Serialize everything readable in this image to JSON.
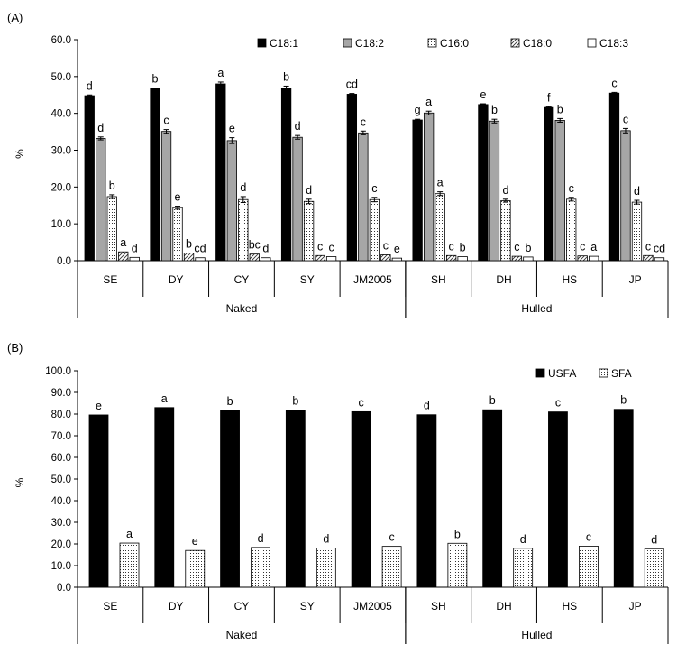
{
  "chart_data": [
    {
      "panel_label": "(A)",
      "type": "bar",
      "ylabel": "%",
      "ylim": [
        0,
        60
      ],
      "ytick_step": 10,
      "ytick_labels": [
        "0.0",
        "10.0",
        "20.0",
        "30.0",
        "40.0",
        "50.0",
        "60.0"
      ],
      "categories": [
        "SE",
        "DY",
        "CY",
        "SY",
        "JM2005",
        "SH",
        "DH",
        "HS",
        "JP"
      ],
      "groups": [
        {
          "label": "Naked",
          "count": 5
        },
        {
          "label": "Hulled",
          "count": 4
        }
      ],
      "legend_position": "top-right",
      "series": [
        {
          "name": "C18:1",
          "fill": "black",
          "values": [
            44.8,
            46.7,
            48.0,
            46.9,
            45.2,
            38.2,
            42.4,
            41.6,
            45.5
          ],
          "errors": [
            0.2,
            0.2,
            0.5,
            0.5,
            0.2,
            0.2,
            0.2,
            0.2,
            0.2
          ],
          "letters": [
            "d",
            "b",
            "a",
            "b",
            "cd",
            "g",
            "e",
            "f",
            "c"
          ]
        },
        {
          "name": "C18:2",
          "fill": "gray",
          "values": [
            33.2,
            35.1,
            32.6,
            33.5,
            34.7,
            40.1,
            37.9,
            38.1,
            35.3
          ],
          "errors": [
            0.4,
            0.5,
            0.8,
            0.5,
            0.5,
            0.5,
            0.5,
            0.5,
            0.6
          ],
          "letters": [
            "d",
            "c",
            "e",
            "d",
            "c",
            "a",
            "b",
            "b",
            "c"
          ]
        },
        {
          "name": "C16:0",
          "fill": "dots",
          "values": [
            17.4,
            14.4,
            16.6,
            16.1,
            16.6,
            18.2,
            16.3,
            16.7,
            15.9
          ],
          "errors": [
            0.5,
            0.4,
            0.8,
            0.6,
            0.6,
            0.5,
            0.4,
            0.5,
            0.5
          ],
          "letters": [
            "b",
            "e",
            "d",
            "d",
            "c",
            "a",
            "d",
            "c",
            "d"
          ]
        },
        {
          "name": "C18:0",
          "fill": "hatch",
          "values": [
            2.4,
            2.1,
            1.8,
            1.4,
            1.6,
            1.4,
            1.2,
            1.3,
            1.4
          ],
          "letters": [
            "a",
            "b",
            "bc",
            "c",
            "c",
            "c",
            "c",
            "c",
            "c"
          ]
        },
        {
          "name": "C18:3",
          "fill": "white",
          "values": [
            0.9,
            0.8,
            0.8,
            1.1,
            0.7,
            1.1,
            1.0,
            1.2,
            0.8
          ],
          "letters": [
            "d",
            "cd",
            "d",
            "c",
            "e",
            "b",
            "b",
            "a",
            "cd"
          ]
        }
      ]
    },
    {
      "panel_label": "(B)",
      "type": "bar",
      "ylabel": "%",
      "ylim": [
        0,
        100
      ],
      "ytick_step": 10,
      "ytick_labels": [
        "0.0",
        "10.0",
        "20.0",
        "30.0",
        "40.0",
        "50.0",
        "60.0",
        "70.0",
        "80.0",
        "90.0",
        "100.0"
      ],
      "categories": [
        "SE",
        "DY",
        "CY",
        "SY",
        "JM2005",
        "SH",
        "DH",
        "HS",
        "JP"
      ],
      "groups": [
        {
          "label": "Naked",
          "count": 5
        },
        {
          "label": "Hulled",
          "count": 4
        }
      ],
      "legend_position": "top-right",
      "series": [
        {
          "name": "USFA",
          "fill": "black",
          "values": [
            79.6,
            83.0,
            81.6,
            81.9,
            81.1,
            79.7,
            82.0,
            81.0,
            82.2
          ],
          "letters": [
            "e",
            "a",
            "b",
            "b",
            "c",
            "d",
            "b",
            "c",
            "b"
          ]
        },
        {
          "name": "SFA",
          "fill": "dots",
          "values": [
            20.4,
            17.0,
            18.4,
            18.1,
            18.9,
            20.3,
            18.0,
            19.0,
            17.8
          ],
          "letters": [
            "a",
            "e",
            "d",
            "d",
            "c",
            "b",
            "d",
            "c",
            "d"
          ]
        }
      ]
    }
  ]
}
